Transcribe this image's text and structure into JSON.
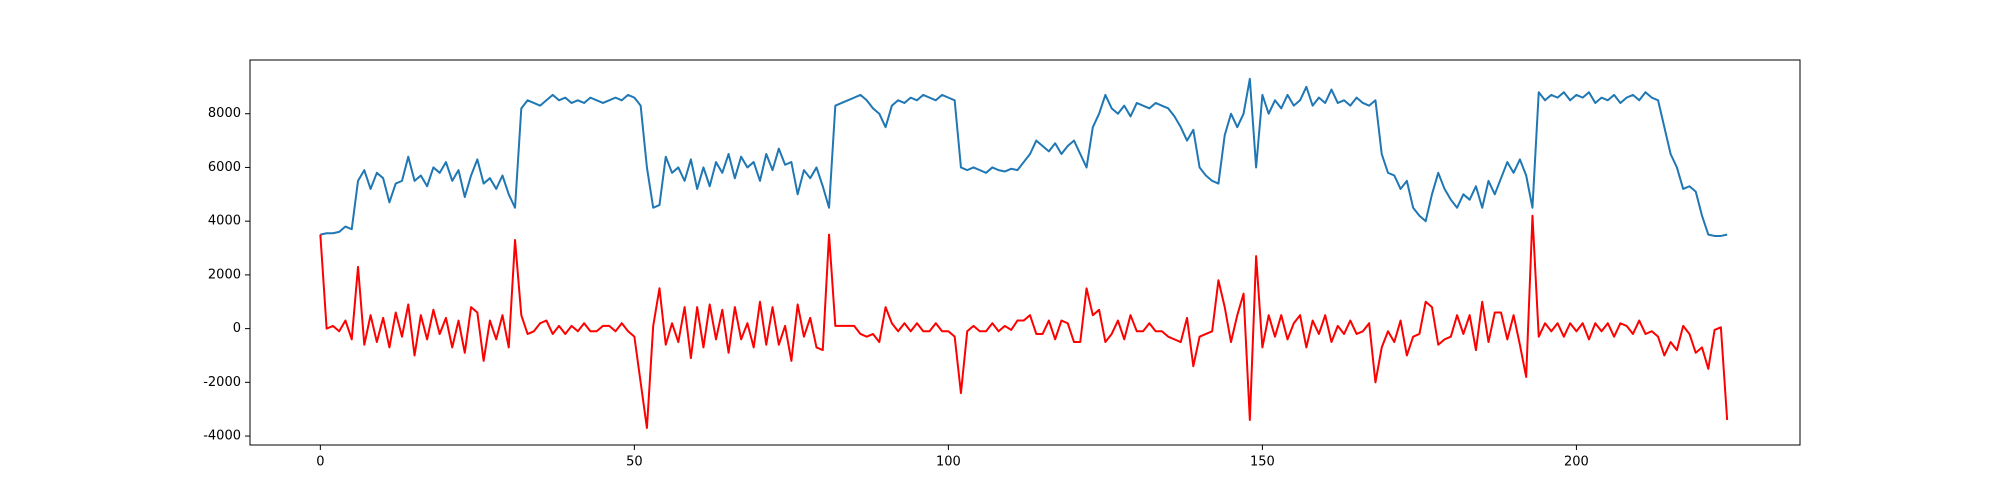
{
  "chart_data": {
    "type": "line",
    "x": [
      0,
      1,
      2,
      3,
      4,
      5,
      6,
      7,
      8,
      9,
      10,
      11,
      12,
      13,
      14,
      15,
      16,
      17,
      18,
      19,
      20,
      21,
      22,
      23,
      24,
      25,
      26,
      27,
      28,
      29,
      30,
      31,
      32,
      33,
      34,
      35,
      36,
      37,
      38,
      39,
      40,
      41,
      42,
      43,
      44,
      45,
      46,
      47,
      48,
      49,
      50,
      51,
      52,
      53,
      54,
      55,
      56,
      57,
      58,
      59,
      60,
      61,
      62,
      63,
      64,
      65,
      66,
      67,
      68,
      69,
      70,
      71,
      72,
      73,
      74,
      75,
      76,
      77,
      78,
      79,
      80,
      81,
      82,
      83,
      84,
      85,
      86,
      87,
      88,
      89,
      90,
      91,
      92,
      93,
      94,
      95,
      96,
      97,
      98,
      99,
      100,
      101,
      102,
      103,
      104,
      105,
      106,
      107,
      108,
      109,
      110,
      111,
      112,
      113,
      114,
      115,
      116,
      117,
      118,
      119,
      120,
      121,
      122,
      123,
      124,
      125,
      126,
      127,
      128,
      129,
      130,
      131,
      132,
      133,
      134,
      135,
      136,
      137,
      138,
      139,
      140,
      141,
      142,
      143,
      144,
      145,
      146,
      147,
      148,
      149,
      150,
      151,
      152,
      153,
      154,
      155,
      156,
      157,
      158,
      159,
      160,
      161,
      162,
      163,
      164,
      165,
      166,
      167,
      168,
      169,
      170,
      171,
      172,
      173,
      174,
      175,
      176,
      177,
      178,
      179,
      180,
      181,
      182,
      183,
      184,
      185,
      186,
      187,
      188,
      189,
      190,
      191,
      192,
      193,
      194,
      195,
      196,
      197,
      198,
      199,
      200,
      201,
      202,
      203,
      204,
      205,
      206,
      207,
      208,
      209,
      210,
      211,
      212,
      213,
      214,
      215,
      216,
      217,
      218,
      219,
      220,
      221,
      222,
      223,
      224
    ],
    "series": [
      {
        "color": "#1f77b4",
        "values": [
          3500,
          3550,
          3550,
          3600,
          3800,
          3700,
          5500,
          5900,
          5200,
          5800,
          5600,
          4700,
          5400,
          5500,
          6400,
          5500,
          5700,
          5300,
          6000,
          5800,
          6200,
          5500,
          5900,
          4900,
          5700,
          6300,
          5400,
          5600,
          5200,
          5700,
          5000,
          4500,
          8200,
          8500,
          8400,
          8300,
          8500,
          8700,
          8500,
          8600,
          8400,
          8500,
          8400,
          8600,
          8500,
          8400,
          8500,
          8600,
          8500,
          8700,
          8600,
          8300,
          6000,
          4500,
          4600,
          6400,
          5800,
          6000,
          5500,
          6300,
          5200,
          6000,
          5300,
          6200,
          5800,
          6500,
          5600,
          6400,
          6000,
          6200,
          5500,
          6500,
          5900,
          6700,
          6100,
          6200,
          5000,
          5900,
          5600,
          6000,
          5300,
          4500,
          8300,
          8400,
          8500,
          8600,
          8700,
          8500,
          8200,
          8000,
          7500,
          8300,
          8500,
          8400,
          8600,
          8500,
          8700,
          8600,
          8500,
          8700,
          8600,
          8500,
          6000,
          5900,
          6000,
          5900,
          5800,
          6000,
          5900,
          5850,
          5950,
          5900,
          6200,
          6500,
          7000,
          6800,
          6600,
          6900,
          6500,
          6800,
          7000,
          6500,
          6000,
          7500,
          8000,
          8700,
          8200,
          8000,
          8300,
          7900,
          8400,
          8300,
          8200,
          8400,
          8300,
          8200,
          7900,
          7500,
          7000,
          7400,
          6000,
          5700,
          5500,
          5400,
          7200,
          8000,
          7500,
          8000,
          9300,
          6000,
          8700,
          8000,
          8500,
          8200,
          8700,
          8300,
          8500,
          9000,
          8300,
          8600,
          8400,
          8900,
          8400,
          8500,
          8300,
          8600,
          8400,
          8300,
          8500,
          6500,
          5800,
          5700,
          5200,
          5500,
          4500,
          4200,
          4000,
          5000,
          5800,
          5200,
          4800,
          4500,
          5000,
          4800,
          5300,
          4500,
          5500,
          5000,
          5600,
          6200,
          5800,
          6300,
          5700,
          4500,
          8800,
          8500,
          8700,
          8600,
          8800,
          8500,
          8700,
          8600,
          8800,
          8400,
          8600,
          8500,
          8700,
          8400,
          8600,
          8700,
          8500,
          8800,
          8600,
          8500,
          7500,
          6500,
          6000,
          5200,
          5300,
          5100,
          4200,
          3500,
          3450,
          3450,
          3500
        ]
      },
      {
        "color": "#ff0000",
        "values": [
          3500,
          0,
          100,
          -100,
          300,
          -400,
          2300,
          -600,
          500,
          -500,
          400,
          -700,
          600,
          -300,
          900,
          -1000,
          500,
          -400,
          700,
          -200,
          400,
          -700,
          300,
          -900,
          800,
          600,
          -1200,
          300,
          -400,
          500,
          -700,
          3300,
          500,
          -200,
          -100,
          200,
          300,
          -200,
          100,
          -200,
          100,
          -100,
          200,
          -100,
          -100,
          100,
          100,
          -100,
          200,
          -100,
          -300,
          -2000,
          -3700,
          100,
          1500,
          -600,
          200,
          -500,
          800,
          -1100,
          800,
          -700,
          900,
          -400,
          700,
          -900,
          800,
          -400,
          200,
          -700,
          1000,
          -600,
          800,
          -600,
          100,
          -1200,
          900,
          -300,
          400,
          -700,
          -800,
          3500,
          100,
          100,
          100,
          100,
          -200,
          -300,
          -200,
          -500,
          800,
          200,
          -100,
          200,
          -100,
          200,
          -100,
          -100,
          200,
          -100,
          -100,
          -300,
          -2400,
          -100,
          100,
          -100,
          -100,
          200,
          -100,
          100,
          -50,
          300,
          300,
          500,
          -200,
          -200,
          300,
          -400,
          300,
          200,
          -500,
          -500,
          1500,
          500,
          700,
          -500,
          -200,
          300,
          -400,
          500,
          -100,
          -100,
          200,
          -100,
          -100,
          -300,
          -400,
          -500,
          400,
          -1400,
          -300,
          -200,
          -100,
          1800,
          800,
          -500,
          500,
          1300,
          -3400,
          2700,
          -700,
          500,
          -300,
          500,
          -400,
          200,
          500,
          -700,
          300,
          -200,
          500,
          -500,
          100,
          -200,
          300,
          -200,
          -100,
          200,
          -2000,
          -700,
          -100,
          -500,
          300,
          -1000,
          -300,
          -200,
          1000,
          800,
          -600,
          -400,
          -300,
          500,
          -200,
          500,
          -800,
          1000,
          -500,
          600,
          600,
          -400,
          500,
          -600,
          -1800,
          4200,
          -300,
          200,
          -100,
          200,
          -300,
          200,
          -100,
          200,
          -400,
          200,
          -100,
          200,
          -300,
          200,
          100,
          -200,
          300,
          -200,
          -100,
          -300,
          -1000,
          -500,
          -800,
          100,
          -200,
          -900,
          -700,
          -1500,
          -50,
          50,
          -3400
        ]
      }
    ],
    "xlim": [
      -11.2,
      235.6
    ],
    "xticks": [
      0,
      50,
      100,
      150,
      200
    ],
    "ylim": [
      -4333,
      10000
    ],
    "yticks": [
      -4000,
      -2000,
      0,
      2000,
      4000,
      6000,
      8000
    ]
  }
}
